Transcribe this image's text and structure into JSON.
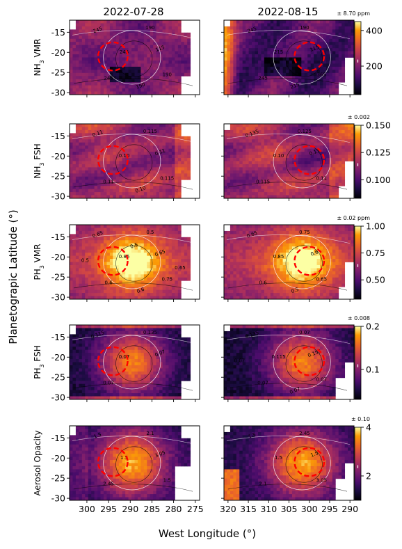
{
  "figure": {
    "ylabel": "Planetograpic Latitude (°)",
    "xlabel": "West Longitude (°)"
  },
  "columns": [
    {
      "title": "2022-07-28",
      "xlim": [
        304,
        274
      ],
      "xticks": [
        300,
        295,
        290,
        285,
        280,
        275
      ],
      "xticklabels": [
        "300",
        "295",
        "290",
        "285",
        "280",
        "275"
      ]
    },
    {
      "title": "2022-08-15",
      "xlim": [
        321,
        289
      ],
      "xticks": [
        320,
        315,
        310,
        305,
        300,
        295,
        290
      ],
      "xticklabels": [
        "320",
        "315",
        "310",
        "305",
        "300",
        "295",
        "290"
      ]
    }
  ],
  "rows": [
    {
      "label_main": "NH",
      "label_sub": "3",
      "label_tail": " VMR",
      "error": "± 8.70 ppm",
      "colorbar": {
        "min": 40,
        "max": 450,
        "ticks": [
          200,
          400
        ],
        "ticklabels": [
          "200",
          "400"
        ]
      },
      "contour_labels": [
        [
          "245",
          "190",
          "245",
          "115",
          "245",
          "190",
          "190"
        ],
        [
          "245",
          "190",
          "215",
          "115",
          "245",
          "365",
          "215"
        ]
      ]
    },
    {
      "label_main": "NH",
      "label_sub": "3",
      "label_tail": " FSH",
      "error": "± 0.002",
      "colorbar": {
        "min": 0.083,
        "max": 0.15,
        "ticks": [
          0.1,
          0.125,
          0.15
        ],
        "ticklabels": [
          "0.100",
          "0.125",
          "0.150"
        ]
      },
      "contour_labels": [
        [
          "0.11",
          "0.115",
          "0.10",
          "0.11",
          "0.11",
          "0.115",
          "0.10"
        ],
        [
          "0.135",
          "0.125",
          "0.10",
          "0.11",
          "0.115",
          "0.11"
        ]
      ]
    },
    {
      "label_main": "PH",
      "label_sub": "3",
      "label_tail": " VMR",
      "error": "± 0.02 ppm",
      "colorbar": {
        "min": 0.32,
        "max": 1.0,
        "ticks": [
          0.5,
          0.75,
          1.0
        ],
        "ticklabels": [
          "0.50",
          "0.75",
          "1.00"
        ]
      },
      "contour_labels": [
        [
          "0.65",
          "0.5",
          "0.85",
          "0.65",
          "0.6",
          "0.75",
          "0.6",
          "0.5",
          "0.65",
          "0.5"
        ],
        [
          "0.65",
          "0.75",
          "0.85",
          "0.6",
          "0.6",
          "0.65",
          "0.5"
        ]
      ]
    },
    {
      "label_main": "PH",
      "label_sub": "3",
      "label_tail": " FSH",
      "error": "± 0.008",
      "colorbar": {
        "min": 0.03,
        "max": 0.2,
        "ticks": [
          0.1,
          0.2
        ],
        "ticklabels": [
          "0.1",
          "0.2"
        ]
      },
      "contour_labels": [
        [
          "0.115",
          "0.135",
          "0.07",
          "0.07",
          "0.07"
        ],
        [
          "0.135",
          "0.07",
          "0.115",
          "0.155",
          "0.07",
          "0.07",
          "0.07",
          "0.07"
        ]
      ]
    },
    {
      "label_main": "Aerosol Opacity",
      "label_sub": "",
      "label_tail": "",
      "error": "± 0.10",
      "colorbar": {
        "min": 1.0,
        "max": 4.0,
        "ticks": [
          2,
          4
        ],
        "ticklabels": [
          "2",
          "4"
        ]
      },
      "contour_labels": [
        [
          "1.5",
          "2.1",
          "1.5",
          "3.05",
          "2.45",
          "1.5"
        ],
        [
          "1.5",
          "2.45",
          "1.5",
          "1.5",
          "2.1",
          "3.05"
        ]
      ]
    }
  ],
  "chart_data": {
    "type": "heatmap",
    "layout": "5 rows x 2 columns of gridded maps with colorbars",
    "colormap": "inferno",
    "ylim": [
      -30.5,
      -12
    ],
    "yticks": [
      -15,
      -20,
      -25,
      -30
    ],
    "yticklabels": [
      "-15",
      "-20",
      "-25",
      "-30"
    ],
    "marker": {
      "shape": "dashed circle",
      "color": "#ff0000",
      "centers": [
        [
          294,
          -21
        ],
        [
          300,
          -21
        ]
      ],
      "radius_lat": 3.5
    },
    "maps": [
      {
        "row": 0,
        "col": 0,
        "quantity": "NH3 VMR",
        "date": "2022-07-28",
        "description": "lower values around spot, depression at lat -26"
      },
      {
        "row": 0,
        "col": 1,
        "quantity": "NH3 VMR",
        "date": "2022-08-15",
        "description": "high values at west edge (lon 318-320)"
      },
      {
        "row": 1,
        "col": 0,
        "quantity": "NH3 FSH",
        "date": "2022-07-28"
      },
      {
        "row": 1,
        "col": 1,
        "quantity": "NH3 FSH",
        "date": "2022-08-15"
      },
      {
        "row": 2,
        "col": 0,
        "quantity": "PH3 VMR",
        "date": "2022-07-28",
        "peak": 0.9,
        "peak_location": [
          295,
          -21
        ]
      },
      {
        "row": 2,
        "col": 1,
        "quantity": "PH3 VMR",
        "date": "2022-08-15",
        "peak": 0.9,
        "peak_location": [
          299,
          -21
        ]
      },
      {
        "row": 3,
        "col": 0,
        "quantity": "PH3 FSH",
        "date": "2022-07-28",
        "peak": 0.16,
        "peak_location": [
          294,
          -21
        ]
      },
      {
        "row": 3,
        "col": 1,
        "quantity": "PH3 FSH",
        "date": "2022-08-15",
        "peak": 0.16,
        "peak_location": [
          299,
          -21
        ]
      },
      {
        "row": 4,
        "col": 0,
        "quantity": "Aerosol Opacity",
        "date": "2022-07-28",
        "peak": 3.3,
        "peak_location": [
          295,
          -21
        ]
      },
      {
        "row": 4,
        "col": 1,
        "quantity": "Aerosol Opacity",
        "date": "2022-08-15",
        "peak": 3.0,
        "peak_location": [
          300,
          -21
        ]
      }
    ]
  }
}
